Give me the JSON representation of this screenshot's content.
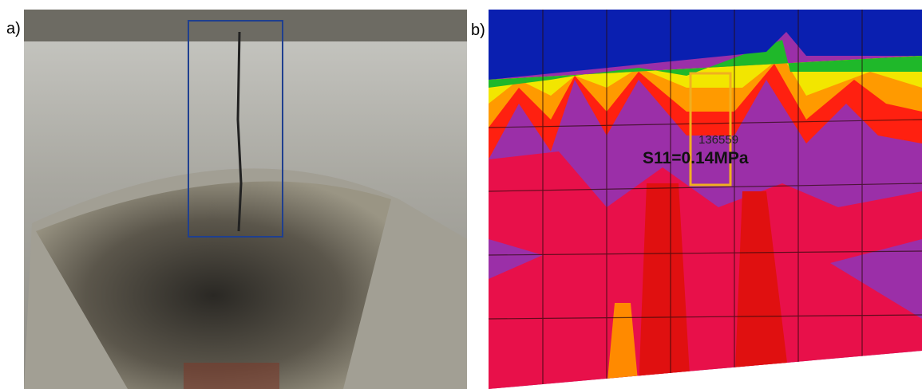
{
  "panels": [
    {
      "label": "a)"
    },
    {
      "label": "b)",
      "node_id": "136559",
      "stress_label": "S11=0.14MPa"
    }
  ]
}
